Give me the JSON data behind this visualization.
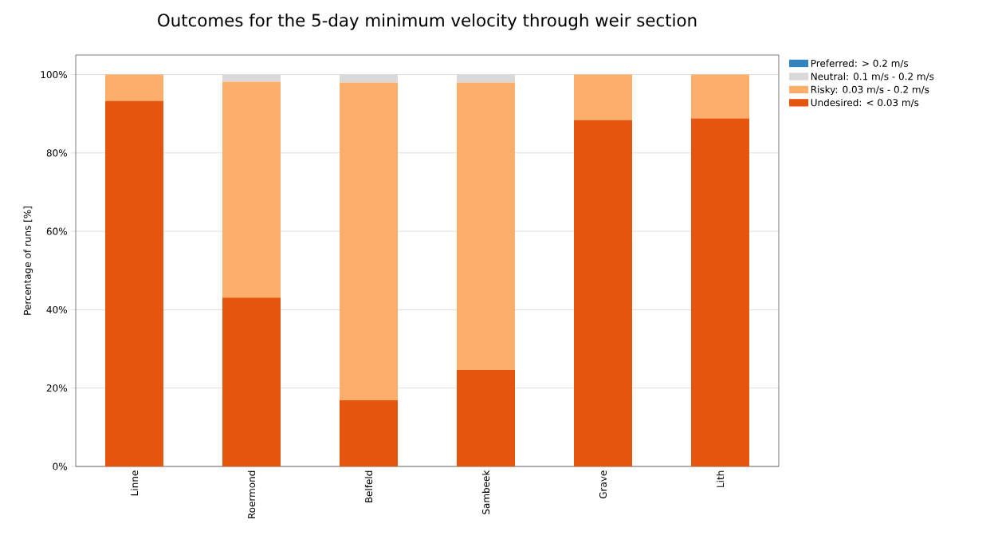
{
  "chart_data": {
    "type": "bar",
    "title": "Outcomes for the 5-day minimum velocity through weir section",
    "ylabel": "Percentage of runs [%]",
    "categories": [
      "Linne",
      "Roermond",
      "Belfeld",
      "Sambeek",
      "Grave",
      "Lith"
    ],
    "stacked": true,
    "series": [
      {
        "name": "Undesired: < 0.03 m/s",
        "color": "#e6550d",
        "values": [
          93.3,
          43.1,
          16.9,
          24.6,
          88.4,
          88.8
        ]
      },
      {
        "name": "Risky: 0.03 m/s - 0.2 m/s",
        "color": "#fdae6b",
        "values": [
          6.7,
          55.1,
          81.1,
          73.4,
          11.6,
          11.2
        ]
      },
      {
        "name": "Neutral: 0.1 m/s - 0.2 m/s",
        "color": "#d9d9d9",
        "values": [
          0,
          1.8,
          2.0,
          2.0,
          0,
          0
        ]
      },
      {
        "name": "Preferred: > 0.2 m/s",
        "color": "#3182bd",
        "values": [
          0,
          0,
          0,
          0,
          0,
          0
        ]
      }
    ],
    "ylim": [
      0,
      105
    ],
    "yticks": [
      {
        "value": 0,
        "label": "0%"
      },
      {
        "value": 20,
        "label": "20%"
      },
      {
        "value": 40,
        "label": "40%"
      },
      {
        "value": 60,
        "label": "60%"
      },
      {
        "value": 80,
        "label": "80%"
      },
      {
        "value": 100,
        "label": "100%"
      }
    ],
    "grid": "y",
    "legend": "top right"
  }
}
